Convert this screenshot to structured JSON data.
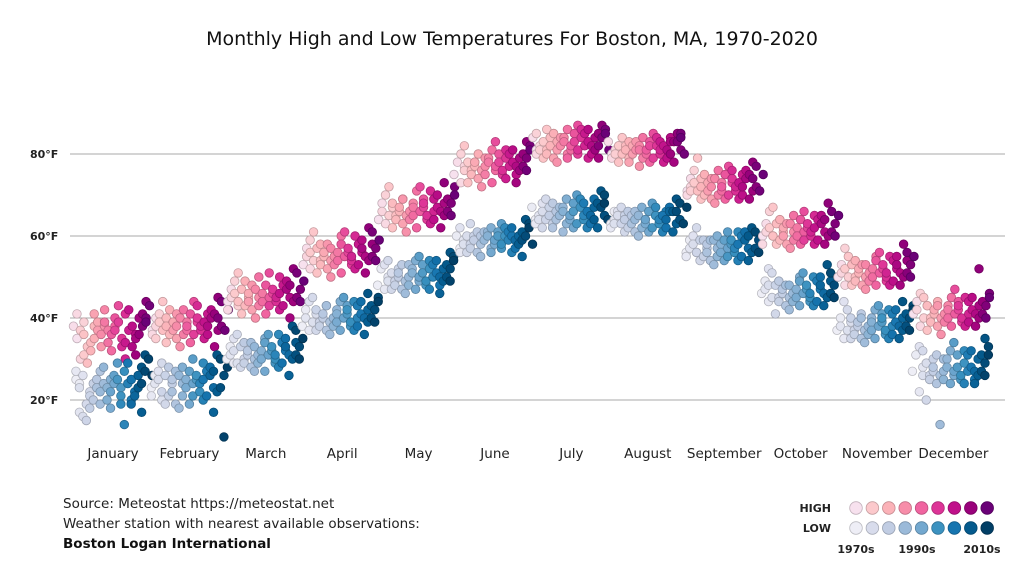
{
  "chart_data": {
    "type": "scatter",
    "title": "Monthly High and Low Temperatures For Boston, MA, 1970-2020",
    "year_range": [
      1970,
      2020
    ],
    "ylim": [
      10,
      92
    ],
    "yticks": [
      {
        "v": 20,
        "label": "20°F"
      },
      {
        "v": 40,
        "label": "40°F"
      },
      {
        "v": 60,
        "label": "60°F"
      },
      {
        "v": 80,
        "label": "80°F"
      }
    ],
    "grid": true,
    "months": [
      {
        "name": "January",
        "high": [
          35,
          38,
          41,
          30,
          39,
          37,
          31,
          33,
          36,
          29,
          34,
          38,
          32,
          35,
          39,
          41,
          37,
          33,
          38,
          36,
          42,
          37,
          39,
          34,
          32,
          38,
          36,
          40,
          43,
          37,
          39,
          35,
          41,
          33,
          30,
          37,
          34,
          42,
          38,
          36,
          33,
          35,
          40,
          31,
          36,
          41,
          44,
          38,
          40,
          43,
          39
        ],
        "low": [
          25,
          24,
          27,
          17,
          26,
          23,
          16,
          19,
          22,
          15,
          21,
          24,
          18,
          20,
          25,
          27,
          23,
          19,
          24,
          22,
          28,
          23,
          25,
          20,
          18,
          24,
          22,
          26,
          29,
          23,
          25,
          21,
          27,
          19,
          14,
          24,
          20,
          29,
          25,
          22,
          19,
          21,
          26,
          17,
          23,
          28,
          31,
          24,
          27,
          30,
          26
        ]
      },
      {
        "name": "February",
        "high": [
          37,
          40,
          36,
          38,
          41,
          35,
          39,
          44,
          34,
          37,
          40,
          36,
          38,
          42,
          39,
          35,
          37,
          41,
          33,
          38,
          40,
          36,
          39,
          42,
          37,
          34,
          38,
          41,
          44,
          39,
          36,
          40,
          37,
          43,
          38,
          35,
          41,
          39,
          36,
          42,
          38,
          40,
          33,
          37,
          41,
          45,
          38,
          40,
          44,
          37,
          42
        ],
        "low": [
          23,
          26,
          21,
          24,
          27,
          20,
          25,
          29,
          19,
          22,
          26,
          21,
          24,
          28,
          25,
          19,
          22,
          27,
          18,
          24,
          26,
          21,
          25,
          28,
          23,
          19,
          24,
          27,
          30,
          25,
          21,
          26,
          22,
          29,
          24,
          20,
          27,
          25,
          21,
          28,
          23,
          26,
          17,
          22,
          27,
          31,
          23,
          26,
          30,
          11,
          28
        ]
      },
      {
        "name": "March",
        "high": [
          44,
          47,
          42,
          45,
          49,
          43,
          46,
          51,
          41,
          44,
          47,
          43,
          45,
          49,
          46,
          42,
          44,
          48,
          40,
          45,
          47,
          43,
          46,
          50,
          44,
          41,
          45,
          48,
          51,
          46,
          43,
          47,
          44,
          50,
          45,
          42,
          48,
          46,
          43,
          49,
          45,
          47,
          40,
          44,
          48,
          52,
          45,
          47,
          51,
          44,
          49
        ],
        "low": [
          30,
          33,
          29,
          31,
          35,
          29,
          32,
          36,
          28,
          30,
          33,
          29,
          31,
          34,
          32,
          28,
          30,
          34,
          27,
          31,
          33,
          29,
          32,
          35,
          30,
          27,
          31,
          34,
          36,
          32,
          29,
          33,
          30,
          36,
          31,
          28,
          34,
          32,
          29,
          35,
          31,
          33,
          26,
          30,
          34,
          38,
          31,
          33,
          37,
          30,
          35
        ]
      },
      {
        "name": "April",
        "high": [
          53,
          57,
          52,
          55,
          59,
          54,
          56,
          61,
          51,
          54,
          57,
          53,
          55,
          58,
          56,
          52,
          54,
          58,
          50,
          55,
          57,
          53,
          56,
          60,
          54,
          51,
          55,
          58,
          61,
          56,
          53,
          57,
          54,
          60,
          55,
          52,
          58,
          56,
          53,
          59,
          55,
          57,
          51,
          54,
          58,
          62,
          55,
          57,
          61,
          54,
          59
        ],
        "low": [
          38,
          42,
          37,
          40,
          44,
          39,
          41,
          45,
          37,
          39,
          42,
          38,
          40,
          43,
          41,
          37,
          39,
          43,
          36,
          40,
          42,
          38,
          41,
          44,
          39,
          37,
          40,
          43,
          45,
          41,
          38,
          42,
          39,
          44,
          40,
          37,
          43,
          41,
          38,
          44,
          40,
          42,
          36,
          39,
          43,
          46,
          40,
          42,
          45,
          39,
          44
        ]
      },
      {
        "name": "May",
        "high": [
          64,
          68,
          63,
          66,
          70,
          65,
          67,
          72,
          62,
          65,
          68,
          64,
          66,
          69,
          67,
          63,
          65,
          69,
          61,
          66,
          68,
          64,
          67,
          71,
          65,
          62,
          66,
          69,
          72,
          67,
          64,
          68,
          65,
          71,
          66,
          63,
          69,
          67,
          64,
          70,
          66,
          68,
          62,
          65,
          69,
          73,
          66,
          68,
          72,
          65,
          70
        ],
        "low": [
          48,
          52,
          47,
          50,
          53,
          49,
          51,
          54,
          47,
          49,
          52,
          48,
          50,
          53,
          51,
          47,
          49,
          53,
          46,
          50,
          52,
          48,
          51,
          54,
          49,
          47,
          50,
          53,
          55,
          51,
          48,
          52,
          49,
          54,
          50,
          47,
          53,
          51,
          48,
          54,
          50,
          52,
          46,
          49,
          53,
          56,
          50,
          52,
          55,
          49,
          54
        ]
      },
      {
        "name": "June",
        "high": [
          75,
          78,
          73,
          77,
          80,
          76,
          78,
          82,
          73,
          76,
          78,
          75,
          77,
          80,
          78,
          74,
          76,
          79,
          72,
          77,
          79,
          75,
          78,
          81,
          76,
          73,
          77,
          80,
          83,
          78,
          75,
          79,
          76,
          81,
          77,
          74,
          80,
          78,
          75,
          81,
          77,
          79,
          73,
          76,
          80,
          83,
          77,
          79,
          82,
          76,
          81
        ],
        "low": [
          57,
          60,
          56,
          59,
          62,
          58,
          60,
          63,
          56,
          58,
          60,
          57,
          59,
          61,
          60,
          56,
          58,
          61,
          55,
          59,
          61,
          57,
          60,
          62,
          58,
          56,
          59,
          61,
          63,
          60,
          57,
          60,
          58,
          62,
          59,
          56,
          61,
          60,
          57,
          62,
          59,
          60,
          55,
          58,
          61,
          64,
          59,
          60,
          63,
          58,
          62
        ]
      },
      {
        "name": "July",
        "high": [
          81,
          84,
          80,
          82,
          85,
          81,
          83,
          86,
          79,
          81,
          84,
          80,
          82,
          85,
          83,
          79,
          81,
          84,
          78,
          82,
          84,
          80,
          83,
          86,
          81,
          79,
          82,
          85,
          87,
          83,
          80,
          84,
          81,
          86,
          82,
          79,
          85,
          83,
          80,
          86,
          82,
          84,
          79,
          81,
          85,
          87,
          82,
          84,
          86,
          81,
          85
        ],
        "low": [
          64,
          67,
          63,
          65,
          68,
          64,
          66,
          69,
          62,
          64,
          67,
          63,
          65,
          68,
          66,
          62,
          64,
          67,
          61,
          65,
          67,
          63,
          66,
          69,
          64,
          62,
          65,
          68,
          70,
          66,
          63,
          67,
          64,
          69,
          65,
          62,
          68,
          66,
          63,
          69,
          65,
          67,
          62,
          64,
          68,
          71,
          65,
          67,
          70,
          64,
          68
        ]
      },
      {
        "name": "August",
        "high": [
          80,
          83,
          79,
          81,
          82,
          80,
          82,
          84,
          78,
          80,
          82,
          79,
          81,
          83,
          82,
          78,
          80,
          83,
          77,
          81,
          82,
          79,
          81,
          84,
          80,
          78,
          81,
          83,
          85,
          82,
          79,
          82,
          80,
          84,
          81,
          78,
          83,
          82,
          79,
          84,
          81,
          83,
          78,
          80,
          83,
          85,
          81,
          83,
          85,
          80,
          84
        ],
        "low": [
          63,
          66,
          62,
          64,
          66,
          63,
          65,
          67,
          61,
          63,
          65,
          62,
          64,
          66,
          65,
          61,
          63,
          66,
          60,
          64,
          65,
          62,
          64,
          67,
          63,
          61,
          64,
          66,
          68,
          65,
          62,
          65,
          63,
          67,
          64,
          61,
          66,
          65,
          62,
          67,
          64,
          66,
          61,
          63,
          66,
          69,
          64,
          66,
          68,
          63,
          67
        ]
      },
      {
        "name": "September",
        "high": [
          71,
          74,
          70,
          72,
          76,
          71,
          73,
          79,
          69,
          71,
          74,
          70,
          72,
          75,
          73,
          69,
          71,
          74,
          68,
          72,
          74,
          70,
          73,
          76,
          71,
          69,
          72,
          75,
          77,
          73,
          70,
          74,
          71,
          76,
          72,
          69,
          75,
          73,
          70,
          76,
          72,
          74,
          69,
          71,
          75,
          78,
          72,
          74,
          77,
          71,
          75
        ],
        "low": [
          56,
          59,
          55,
          57,
          60,
          56,
          58,
          62,
          54,
          56,
          59,
          55,
          57,
          59,
          58,
          54,
          56,
          59,
          53,
          57,
          59,
          55,
          58,
          60,
          56,
          54,
          57,
          59,
          61,
          58,
          55,
          59,
          56,
          61,
          57,
          54,
          60,
          58,
          55,
          61,
          57,
          59,
          54,
          56,
          60,
          62,
          57,
          59,
          61,
          56,
          60
        ]
      },
      {
        "name": "October",
        "high": [
          60,
          63,
          58,
          61,
          66,
          60,
          62,
          67,
          58,
          60,
          63,
          59,
          61,
          64,
          62,
          58,
          60,
          63,
          57,
          61,
          63,
          59,
          62,
          65,
          60,
          58,
          61,
          64,
          66,
          62,
          59,
          63,
          60,
          65,
          61,
          58,
          64,
          62,
          59,
          65,
          61,
          63,
          58,
          60,
          64,
          68,
          61,
          63,
          66,
          60,
          65
        ],
        "low": [
          46,
          49,
          44,
          47,
          52,
          45,
          48,
          51,
          41,
          45,
          48,
          44,
          46,
          49,
          47,
          43,
          45,
          48,
          42,
          46,
          48,
          44,
          47,
          50,
          45,
          43,
          46,
          49,
          51,
          47,
          44,
          48,
          45,
          50,
          46,
          43,
          49,
          47,
          44,
          50,
          46,
          48,
          43,
          45,
          49,
          53,
          46,
          48,
          51,
          45,
          50
        ]
      },
      {
        "name": "November",
        "high": [
          50,
          53,
          48,
          51,
          57,
          50,
          52,
          55,
          48,
          50,
          53,
          49,
          51,
          54,
          52,
          48,
          50,
          53,
          47,
          51,
          53,
          49,
          52,
          55,
          50,
          48,
          51,
          54,
          56,
          52,
          49,
          53,
          50,
          55,
          51,
          48,
          54,
          52,
          49,
          55,
          51,
          53,
          48,
          50,
          54,
          58,
          51,
          53,
          56,
          50,
          55
        ],
        "low": [
          37,
          40,
          35,
          38,
          44,
          37,
          39,
          42,
          35,
          37,
          40,
          36,
          38,
          41,
          39,
          35,
          37,
          40,
          34,
          38,
          40,
          36,
          39,
          42,
          37,
          35,
          38,
          41,
          43,
          39,
          36,
          40,
          37,
          42,
          38,
          35,
          41,
          39,
          36,
          42,
          38,
          40,
          35,
          37,
          41,
          44,
          38,
          40,
          43,
          37,
          42
        ]
      },
      {
        "name": "December",
        "high": [
          41,
          44,
          38,
          42,
          46,
          40,
          43,
          45,
          37,
          40,
          43,
          39,
          41,
          44,
          42,
          38,
          40,
          43,
          36,
          41,
          43,
          39,
          42,
          45,
          40,
          38,
          41,
          44,
          47,
          42,
          39,
          43,
          40,
          45,
          41,
          38,
          44,
          42,
          39,
          45,
          41,
          43,
          38,
          40,
          44,
          52,
          41,
          43,
          46,
          40,
          45
        ],
        "low": [
          27,
          31,
          22,
          28,
          33,
          26,
          29,
          32,
          20,
          26,
          30,
          25,
          27,
          31,
          28,
          24,
          26,
          30,
          14,
          27,
          30,
          25,
          28,
          32,
          26,
          24,
          27,
          31,
          34,
          28,
          25,
          29,
          26,
          32,
          27,
          24,
          31,
          28,
          25,
          32,
          27,
          30,
          24,
          26,
          31,
          35,
          27,
          29,
          33,
          26,
          31
        ]
      }
    ],
    "colors": {
      "high": [
        "#f7e1ee",
        "#fcc9cc",
        "#fbb2b8",
        "#f78da9",
        "#f064a0",
        "#dd3497",
        "#c0108a",
        "#99017b",
        "#6a0177"
      ],
      "low": [
        "#eeeef6",
        "#d8dcec",
        "#c1cde3",
        "#9bbad9",
        "#73a8cf",
        "#3c92c0",
        "#1675b0",
        "#045a8d",
        "#023f66"
      ],
      "grid": "#aaaaaa"
    },
    "legend": {
      "high_label": "HIGH",
      "low_label": "LOW",
      "decade_labels": [
        "1970s",
        "1990s",
        "2010s"
      ],
      "placement": "bottom-right"
    }
  },
  "footer": {
    "source": "Source: Meteostat https://meteostat.net",
    "note": "Weather station with nearest available observations:",
    "station": "Boston Logan International"
  }
}
